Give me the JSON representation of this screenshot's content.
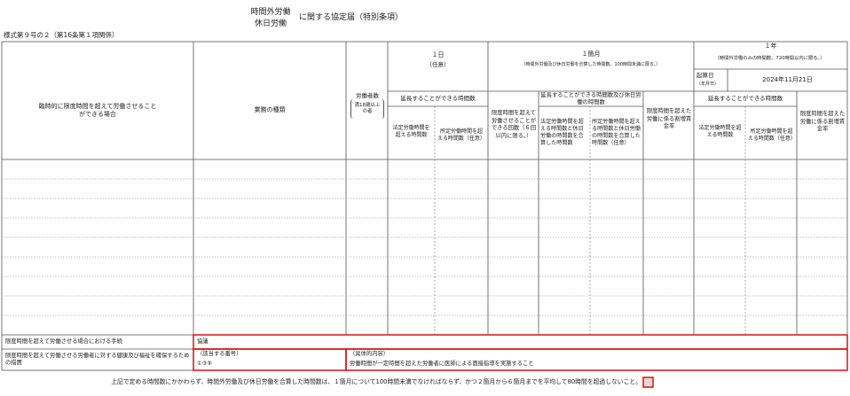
{
  "header": {
    "form_number": "様式第９号の２（第16条第１項関係）",
    "title_line1": "時間外労働",
    "title_line2": "休日労働",
    "title_suffix": "に関する協定届（特別条項）"
  },
  "table": {
    "reason": "臨時的に限度時間を超えて労働させることができる場合",
    "work_type": "業務の種類",
    "workers": "労働者数",
    "workers_note": "満18歳以上の者",
    "day": {
      "title": "１日",
      "note": "（任意）",
      "extend": "延長することができる時間数",
      "legal": "法定労働時間を超える時間数",
      "scheduled": "所定労働時間を超える時間数（任意）"
    },
    "month": {
      "title": "１箇月",
      "note": "（時間外労働及び休日労働を合算した時間数。100時間未満に限る。）",
      "count": "限度時間を超えて労働させることができる回数（６回以内に限る。）",
      "extend": "延長することができる時間数及び休日労働の時間数",
      "legal": "法定労働時間を超える時間数と休日労働の時間数を合算した時間数",
      "scheduled": "所定労働時間を超える時間数と休日労働の時間数を合算した時間数（任意）",
      "rate": "限度時間を超えた労働に係る割増賃金率"
    },
    "year": {
      "title": "１年",
      "note": "（時間外労働のみの時間数。720時間以内に限る。）",
      "start_label": "起算日",
      "start_note": "（年月日）",
      "start_date": "2024年11月21日",
      "extend": "延長することができる時間数",
      "legal": "法定労働時間を超える時間数",
      "scheduled": "所定労働時間を超える時間数（任意）",
      "rate": "限度時間を超えた労働に係る割増賃金率"
    }
  },
  "footer": {
    "procedure_label": "限度時間を超えて労働させる場合における手続",
    "procedure": "協議",
    "measures_label": "限度時間を超えて労働させる労働者に対する健康及び福祉を確保するための措置",
    "number_label": "（該当する番号）",
    "numbers": "①③⑨",
    "detail_label": "（具体的内容）",
    "detail": "労働時間が一定時間を超えた労働者に医師による面接指導を実施すること",
    "note": "上記で定める時間数にかかわらず、時間外労働及び休日労働を合算した時間数は、１箇月について100時間未満でなければならず、かつ２箇月から６箇月までを平均して80時間を超過しないこと。"
  }
}
